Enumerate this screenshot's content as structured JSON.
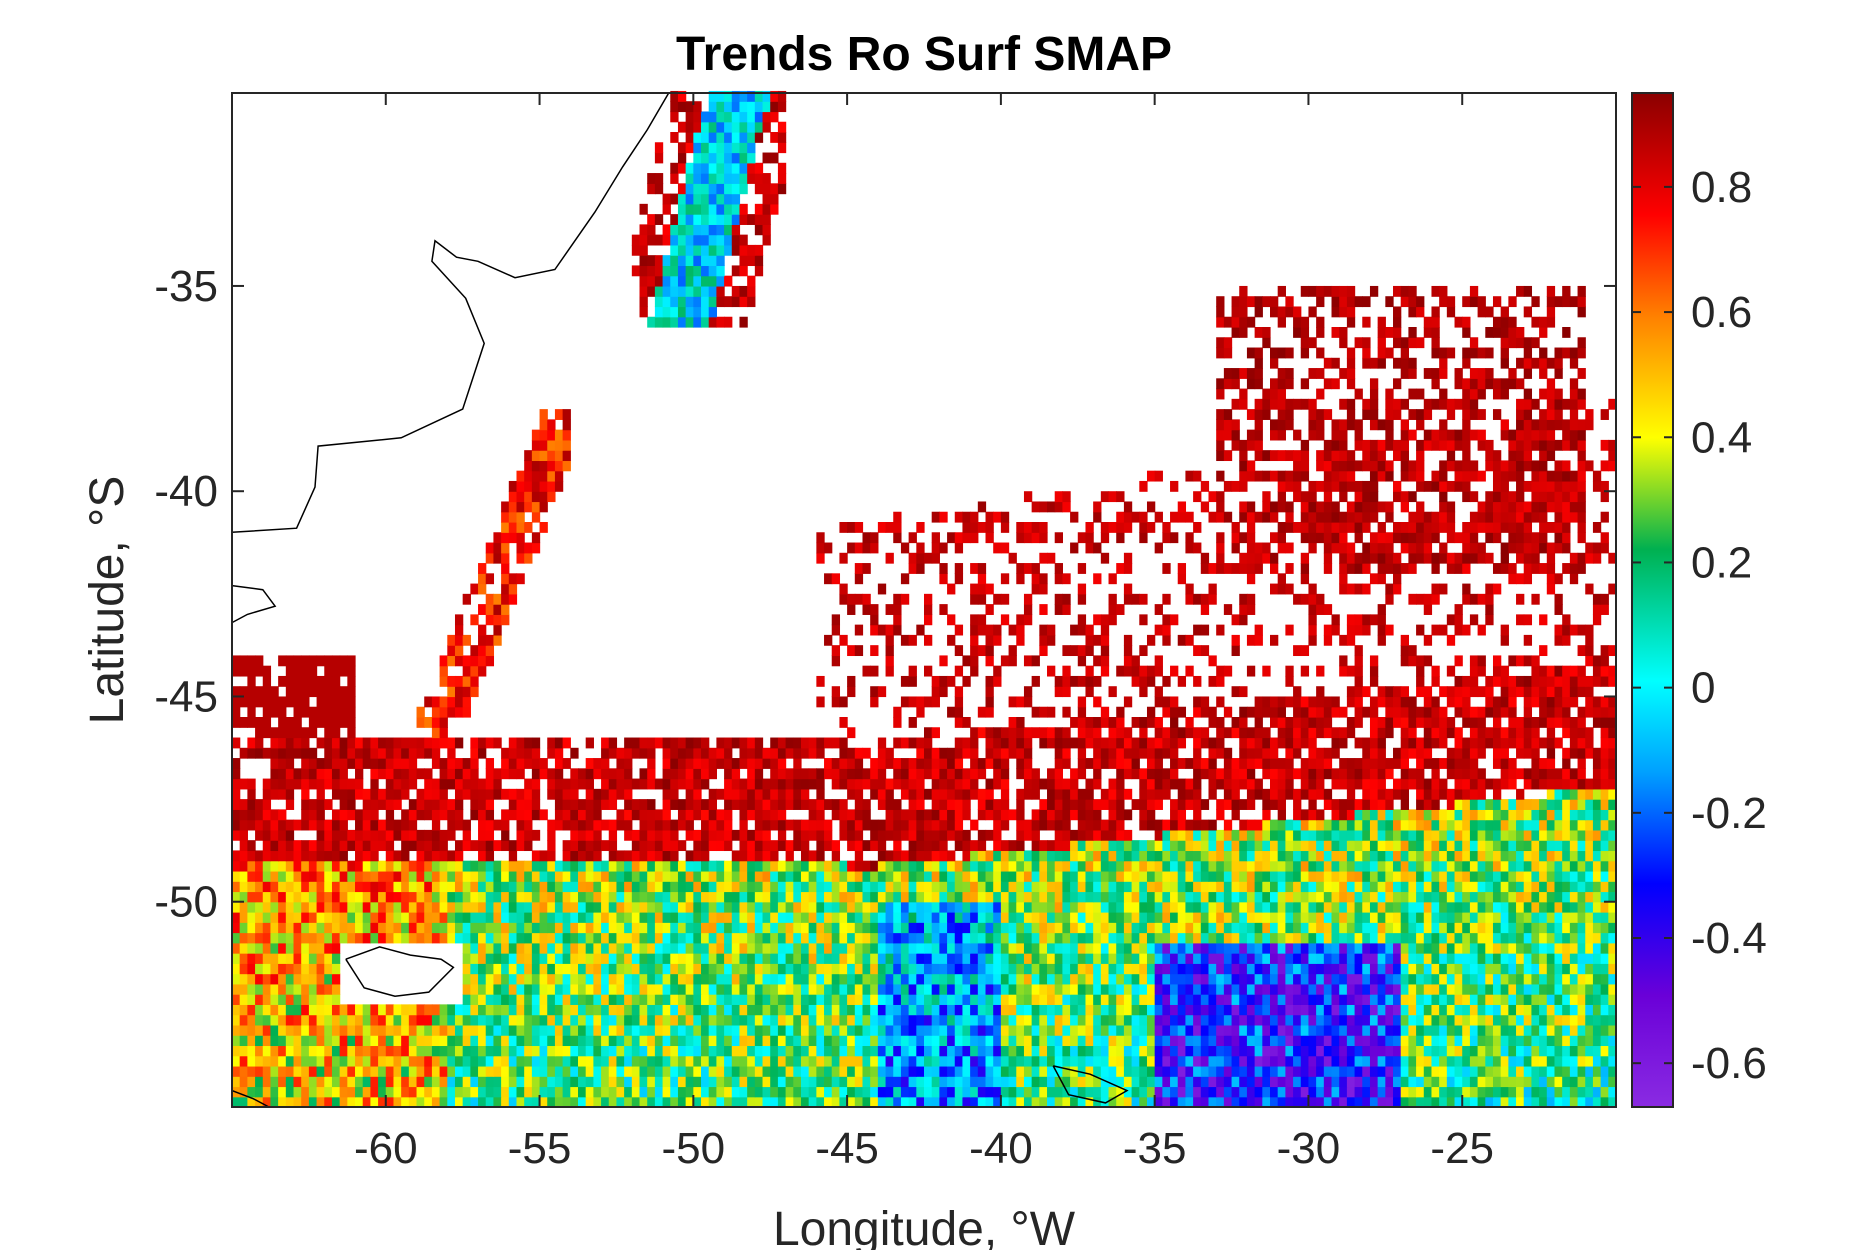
{
  "chart_data": {
    "type": "heatmap",
    "title": "Trends Ro Surf SMAP",
    "xlabel": "Longitude, °W",
    "ylabel": "Latitude, °S",
    "xlim": [
      -65,
      -20
    ],
    "ylim": [
      -55,
      -30.3
    ],
    "xticks": [
      -60,
      -55,
      -50,
      -45,
      -40,
      -35,
      -30,
      -25
    ],
    "yticks": [
      -50,
      -45,
      -40,
      -35
    ],
    "xtick_labels": [
      "-60",
      "-55",
      "-50",
      "-45",
      "-40",
      "-35",
      "-30",
      "-25"
    ],
    "ytick_labels": [
      "-50",
      "-45",
      "-40",
      "-35"
    ],
    "colorbar": {
      "range": [
        -0.67,
        0.95
      ],
      "ticks": [
        -0.6,
        -0.4,
        -0.2,
        0,
        0.2,
        0.4,
        0.6,
        0.8
      ],
      "tick_labels": [
        "-0.6",
        "-0.4",
        "-0.2",
        "0",
        "0.2",
        "0.4",
        "0.6",
        "0.8"
      ],
      "colormap": "jet-like (violet to dark red)",
      "colors": [
        "#8a2be2",
        "#0000ff",
        "#00ffff",
        "#00b050",
        "#ffff00",
        "#ff8000",
        "#ff0000",
        "#8b0000"
      ]
    },
    "grid": false,
    "coastline_color": "#000000",
    "field_description_zones": [
      {
        "region": "southern band (-55 to -48 S)",
        "typical_value": 0.3
      },
      {
        "region": "southeast patch (-35 to -28 W, -55 to -51 S)",
        "typical_value": -0.4
      },
      {
        "region": "northern frontal margin (-48 to -44 S)",
        "typical_value": 0.85
      },
      {
        "region": "Brazil-Malvinas confluence plume (-52 to -48 W, -36 to -31 S)",
        "typical_value": 0.0
      },
      {
        "region": "northeast patch (-32 to -23 W, -42 to -36 S)",
        "typical_value": 0.9
      }
    ]
  }
}
